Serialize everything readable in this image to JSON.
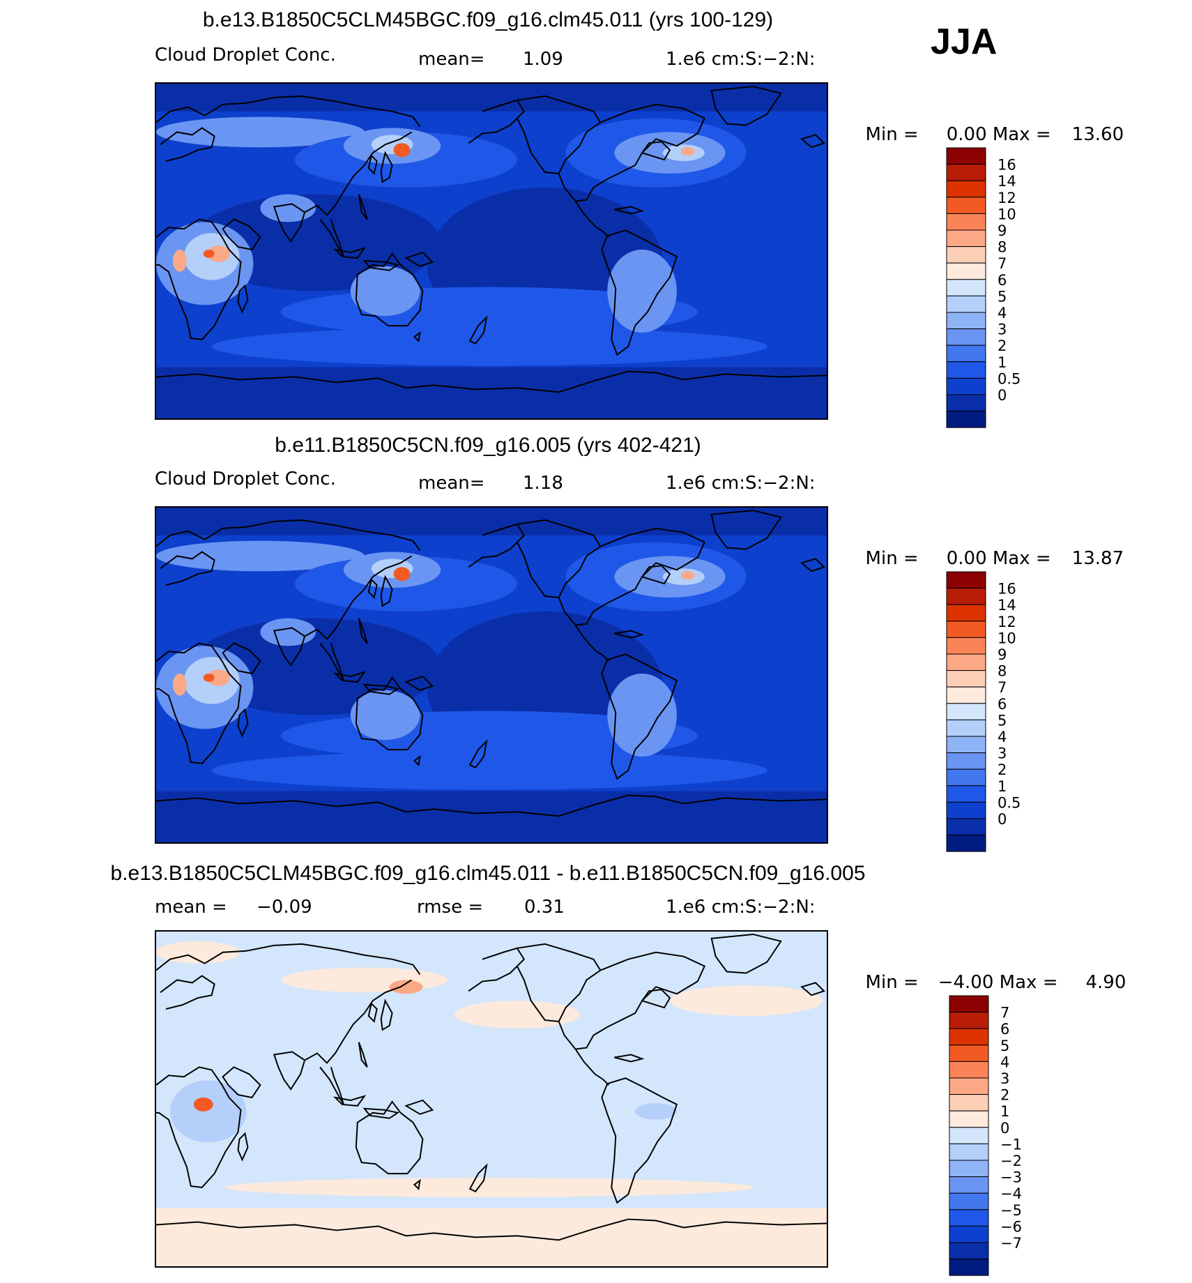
{
  "season": "JJA",
  "panels": [
    {
      "title": "b.e13.B1850C5CLM45BGC.f09_g16.clm45.011 (yrs 100-129)",
      "left_label": "Cloud Droplet Conc.",
      "mid_label": "mean=",
      "mid_value": "1.09",
      "right_label": "1.e6 cm:S:-2:N:",
      "min_label": "Min =",
      "min_value": "0.00",
      "max_label": "Max =",
      "max_value": "13.60",
      "colorbar_labels": [
        "16",
        "14",
        "12",
        "10",
        "9",
        "8",
        "7",
        "6",
        "5",
        "4",
        "3",
        "2",
        "1",
        "0.5",
        "0"
      ],
      "colorbar_colors": [
        "#8b0000",
        "#b81d06",
        "#dd3300",
        "#f25a24",
        "#fa8458",
        "#fba886",
        "#fdd0b6",
        "#fdeadc",
        "#d4e6fb",
        "#b4cffa",
        "#8fb3f7",
        "#6a95f2",
        "#4277ee",
        "#1f58e8",
        "#0d40cc",
        "#0a2ea8",
        "#001c80"
      ],
      "field": "base"
    },
    {
      "title": "b.e11.B1850C5CN.f09_g16.005 (yrs 402-421)",
      "left_label": "Cloud Droplet Conc.",
      "mid_label": "mean=",
      "mid_value": "1.18",
      "right_label": "1.e6 cm:S:-2:N:",
      "min_label": "Min =",
      "min_value": "0.00",
      "max_label": "Max =",
      "max_value": "13.87",
      "colorbar_labels": [
        "16",
        "14",
        "12",
        "10",
        "9",
        "8",
        "7",
        "6",
        "5",
        "4",
        "3",
        "2",
        "1",
        "0.5",
        "0"
      ],
      "colorbar_colors": [
        "#8b0000",
        "#b81d06",
        "#dd3300",
        "#f25a24",
        "#fa8458",
        "#fba886",
        "#fdd0b6",
        "#fdeadc",
        "#d4e6fb",
        "#b4cffa",
        "#8fb3f7",
        "#6a95f2",
        "#4277ee",
        "#1f58e8",
        "#0d40cc",
        "#0a2ea8",
        "#001c80"
      ],
      "field": "base"
    },
    {
      "title": "b.e13.B1850C5CLM45BGC.f09_g16.clm45.011 - b.e11.B1850C5CN.f09_g16.005",
      "left_label": "mean =",
      "left_value": "-0.09",
      "mid_label": "rmse =",
      "mid_value": "0.31",
      "right_label": "1.e6 cm:S:-2:N:",
      "min_label": "Min =",
      "min_value": "-4.00",
      "max_label": "Max =",
      "max_value": "4.90",
      "colorbar_labels": [
        "7",
        "6",
        "5",
        "4",
        "3",
        "2",
        "1",
        "0",
        "-1",
        "-2",
        "-3",
        "-4",
        "-5",
        "-6",
        "-7"
      ],
      "colorbar_colors": [
        "#8b0000",
        "#b81d06",
        "#dd3300",
        "#f25a24",
        "#fa8458",
        "#fba886",
        "#fdd0b6",
        "#fdeadc",
        "#d4e6fb",
        "#b4cffa",
        "#8fb3f7",
        "#6a95f2",
        "#4277ee",
        "#1f58e8",
        "#0d40cc",
        "#0a2ea8",
        "#001c80"
      ],
      "field": "diff"
    }
  ],
  "map_colors": {
    "base_ocean": "#0d40cc",
    "base_deep": "#0a2ea8",
    "base_mid": "#1f58e8",
    "base_light": "#6a95f2",
    "base_pale": "#b4cffa",
    "base_hot": "#f25a24",
    "base_warm": "#fba886",
    "diff_bg": "#d4e6fb",
    "diff_pos": "#fdeadc",
    "diff_neg": "#b4cffa",
    "diff_hot": "#f25a24",
    "coast": "#000000"
  }
}
